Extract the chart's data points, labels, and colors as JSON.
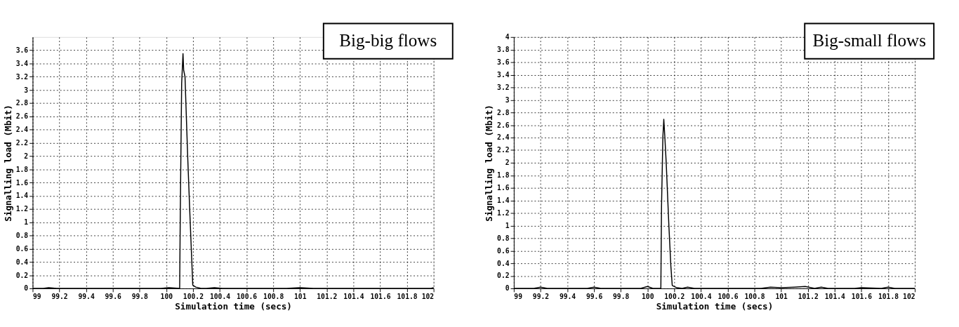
{
  "chart_data": [
    {
      "type": "line",
      "xlabel": "Simulation time (secs)",
      "ylabel": "Signalling load (Mbit)",
      "annotations": [
        "Big-big flows"
      ],
      "grid": true,
      "marker": "none",
      "line_style": "solid",
      "series": [
        {
          "color": "#000000",
          "x": [
            99,
            99.08,
            99.12,
            99.18,
            99.96,
            100.02,
            100.1,
            100.105,
            100.115,
            100.125,
            100.13,
            100.14,
            100.16,
            100.175,
            100.19,
            100.198,
            100.22,
            100.26,
            100.3,
            100.36,
            100.42,
            100.9,
            101.0,
            101.1,
            101.98,
            102
          ],
          "values": [
            0,
            0,
            0.01,
            0,
            0,
            0.01,
            0,
            1.2,
            3.1,
            3.55,
            3.3,
            3.2,
            2.0,
            1.2,
            0.45,
            0.05,
            0.02,
            0,
            0,
            0.01,
            0,
            0,
            0.01,
            0,
            0,
            0.01
          ]
        }
      ],
      "xlim": [
        99,
        102
      ],
      "ylim": [
        0,
        3.8
      ],
      "xticks": [
        99,
        99.2,
        99.4,
        99.6,
        99.8,
        100,
        100.2,
        100.4,
        100.6,
        100.8,
        101,
        101.2,
        101.4,
        101.6,
        101.8,
        102
      ],
      "yticks": [
        0,
        0.2,
        0.4,
        0.6,
        0.8,
        1,
        1.2,
        1.4,
        1.6,
        1.8,
        2,
        2.2,
        2.4,
        2.6,
        2.8,
        3,
        3.2,
        3.4,
        3.6
      ]
    },
    {
      "type": "line",
      "xlabel": "Simulation time (secs)",
      "ylabel": "Signalling load (Mbit)",
      "annotations": [
        "Big-small flows"
      ],
      "grid": true,
      "marker": "none",
      "line_style": "solid",
      "series": [
        {
          "color": "#000000",
          "x": [
            99,
            99.15,
            99.2,
            99.25,
            99.55,
            99.6,
            99.65,
            99.95,
            100.0,
            100.04,
            100.1,
            100.105,
            100.115,
            100.122,
            100.13,
            100.14,
            100.16,
            100.175,
            100.185,
            100.19,
            100.22,
            100.26,
            100.3,
            100.35,
            100.85,
            100.92,
            101.0,
            101.1,
            101.18,
            101.25,
            101.3,
            101.35,
            101.55,
            101.6,
            101.75,
            101.8,
            101.85,
            102
          ],
          "values": [
            0,
            0,
            0.02,
            0,
            0,
            0.02,
            0,
            0,
            0.03,
            0,
            0,
            1.3,
            2.4,
            2.69,
            2.4,
            2.0,
            1.0,
            0.35,
            0.05,
            0.04,
            0.01,
            0,
            0.02,
            0,
            0,
            0.02,
            0.01,
            0.02,
            0.03,
            0,
            0.02,
            0,
            0,
            0.01,
            0,
            0.02,
            0,
            0
          ]
        }
      ],
      "xlim": [
        99,
        102
      ],
      "ylim": [
        0,
        4
      ],
      "xticks": [
        99,
        99.2,
        99.4,
        99.6,
        99.8,
        100,
        100.2,
        100.4,
        100.6,
        100.8,
        101,
        101.2,
        101.4,
        101.6,
        101.8,
        102
      ],
      "yticks": [
        0,
        0.2,
        0.4,
        0.6,
        0.8,
        1,
        1.2,
        1.4,
        1.6,
        1.8,
        2,
        2.2,
        2.4,
        2.6,
        2.8,
        3,
        3.2,
        3.4,
        3.6,
        3.8,
        4
      ]
    }
  ]
}
